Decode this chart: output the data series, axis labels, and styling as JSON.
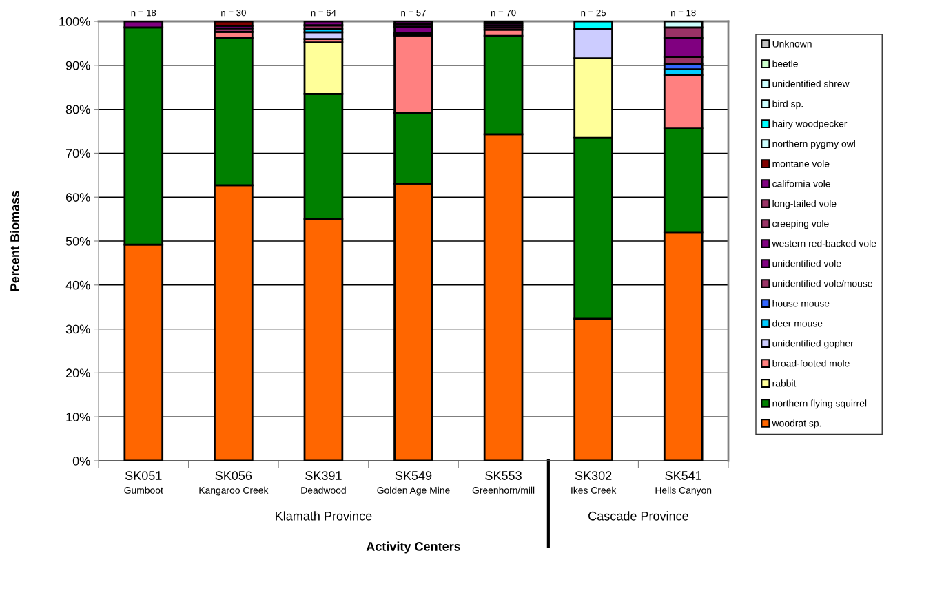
{
  "chart_data": {
    "type": "bar",
    "stacked": true,
    "categories": [
      "SK051\nGumboot",
      "SK056\nKangaroo Creek",
      "SK391\nDeadwood",
      "SK549\nGolden Age Mine",
      "SK553\nGreenhorn/mill",
      "SK302\nIkes Creek",
      "SK541\nHells Canyon"
    ],
    "series": [
      {
        "name": "woodrat sp.",
        "color": "#ff6600",
        "values": [
          49.2,
          62.7,
          55.0,
          63.1,
          74.3,
          32.3,
          51.9
        ]
      },
      {
        "name": "northern flying squirrel",
        "color": "#008000",
        "values": [
          49.4,
          33.6,
          28.5,
          16.0,
          22.4,
          41.2,
          23.7
        ]
      },
      {
        "name": "rabbit",
        "color": "#ffff99",
        "values": [
          null,
          null,
          11.7,
          null,
          null,
          18.1,
          null
        ]
      },
      {
        "name": "broad-footed mole",
        "color": "#ff8080",
        "values": [
          null,
          1.3,
          0.8,
          17.7,
          1.4,
          null,
          12.2
        ]
      },
      {
        "name": "unidentified gopher",
        "color": "#ccccff",
        "values": [
          null,
          null,
          1.5,
          null,
          null,
          6.6,
          null
        ]
      },
      {
        "name": "deer mouse",
        "color": "#00ccff",
        "values": [
          null,
          null,
          0.8,
          null,
          null,
          null,
          1.3
        ]
      },
      {
        "name": "house mouse",
        "color": "#3366ff",
        "values": [
          null,
          null,
          null,
          null,
          null,
          null,
          1.2
        ]
      },
      {
        "name": "unidentified vole/mouse",
        "color": "#993366",
        "values": [
          null,
          0.8,
          0.8,
          0.6,
          0.5,
          null,
          1.6
        ]
      },
      {
        "name": "unidentified vole",
        "color": "#800080",
        "values": [
          1.4,
          null,
          0.9,
          1.4,
          0.5,
          null,
          4.4
        ]
      },
      {
        "name": "western red-backed vole",
        "color": "#800080",
        "values": [
          null,
          0.6,
          null,
          0.6,
          null,
          null,
          null
        ]
      },
      {
        "name": "creeping vole",
        "color": "#993366",
        "values": [
          null,
          null,
          null,
          null,
          null,
          null,
          2.3
        ]
      },
      {
        "name": "long-tailed vole",
        "color": "#993366",
        "values": [
          null,
          null,
          null,
          null,
          null,
          null,
          null
        ]
      },
      {
        "name": "california vole",
        "color": "#800080",
        "values": [
          null,
          null,
          null,
          0.6,
          0.5,
          null,
          null
        ]
      },
      {
        "name": "montane vole",
        "color": "#800000",
        "values": [
          null,
          1.0,
          null,
          null,
          null,
          null,
          null
        ]
      },
      {
        "name": "northern pygmy owl",
        "color": "#ccffff",
        "values": [
          null,
          null,
          null,
          null,
          null,
          null,
          null
        ]
      },
      {
        "name": "hairy woodpecker",
        "color": "#00ffff",
        "values": [
          null,
          null,
          null,
          null,
          null,
          1.8,
          null
        ]
      },
      {
        "name": "bird sp.",
        "color": "#ccffff",
        "values": [
          null,
          null,
          null,
          null,
          null,
          null,
          1.4
        ]
      },
      {
        "name": "unidentified shrew",
        "color": "#ccffff",
        "values": [
          null,
          null,
          null,
          null,
          null,
          null,
          null
        ]
      },
      {
        "name": "beetle",
        "color": "#ccffcc",
        "values": [
          null,
          null,
          null,
          null,
          null,
          null,
          null
        ]
      },
      {
        "name": "Unknown",
        "color": "#c0c0c0",
        "values": [
          null,
          null,
          null,
          null,
          0.4,
          null,
          null
        ]
      }
    ],
    "ylim": [
      0,
      100
    ],
    "yticks": [
      {
        "value": 0,
        "label": "0%"
      },
      {
        "value": 10,
        "label": "10%"
      },
      {
        "value": 20,
        "label": "20%"
      },
      {
        "value": 30,
        "label": "30%"
      },
      {
        "value": 40,
        "label": "40%"
      },
      {
        "value": 50,
        "label": "50%"
      },
      {
        "value": 60,
        "label": "60%"
      },
      {
        "value": 70,
        "label": "70%"
      },
      {
        "value": 80,
        "label": "80%"
      },
      {
        "value": 90,
        "label": "90%"
      },
      {
        "value": 100,
        "label": "100%"
      }
    ],
    "grid": "y",
    "legend": "right",
    "ylabel": "Percent Biomass",
    "xlabel": "Activity Centers",
    "annotations": [
      "n = 18",
      "n = 30",
      "n = 64",
      "n = 57",
      "n = 70",
      "n = 25",
      "n = 18",
      "Klamath Province",
      "Cascade Province"
    ]
  }
}
